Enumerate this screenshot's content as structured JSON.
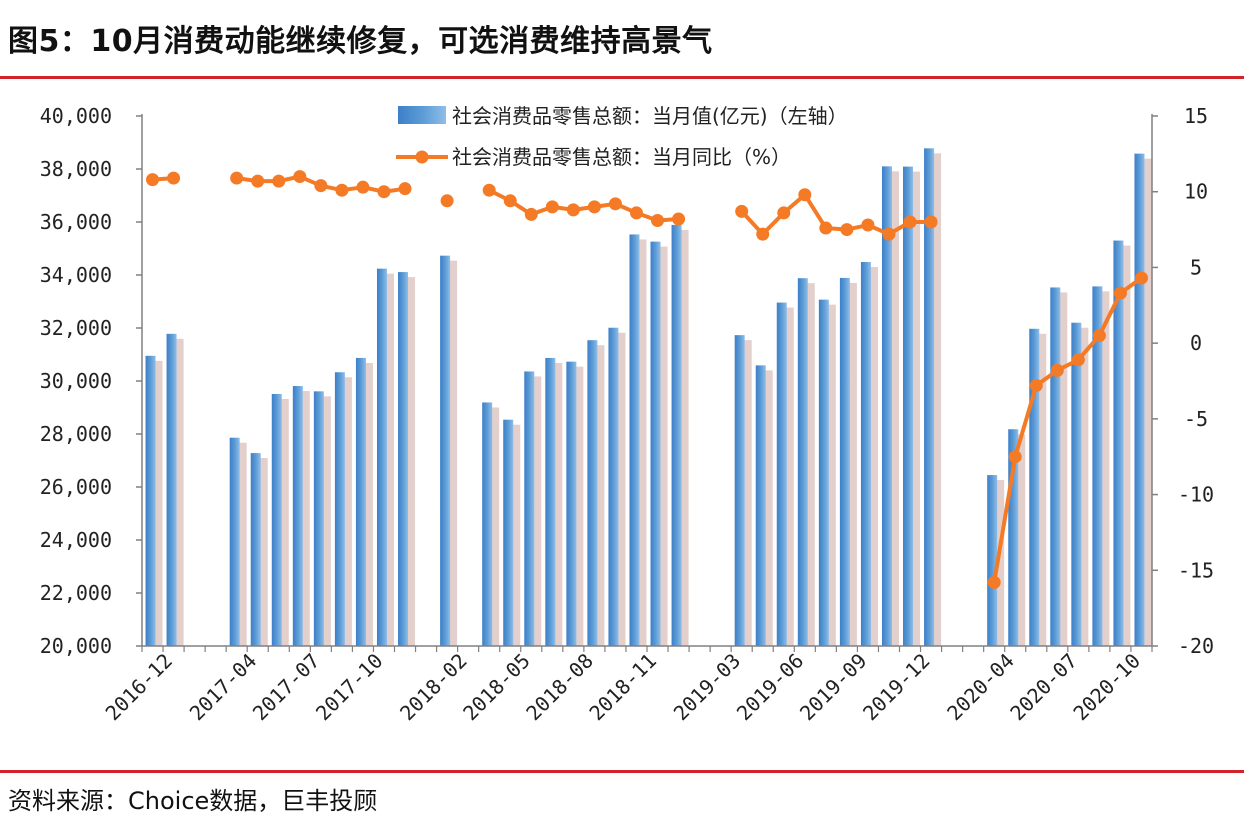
{
  "figure": {
    "title": "图5：10月消费动能继续修复，可选消费维持高景气",
    "source": "资料来源：Choice数据，巨丰投顾"
  },
  "chart_data": {
    "type": "bar+line",
    "categories": [
      "2016-11",
      "2016-12",
      "2017-01",
      "2017-02",
      "2017-03",
      "2017-04",
      "2017-05",
      "2017-06",
      "2017-07",
      "2017-08",
      "2017-09",
      "2017-10",
      "2017-11",
      "2017-12",
      "2018-01",
      "2018-02",
      "2018-03",
      "2018-04",
      "2018-05",
      "2018-06",
      "2018-07",
      "2018-08",
      "2018-09",
      "2018-10",
      "2018-11",
      "2018-12",
      "2019-01",
      "2019-02",
      "2019-03",
      "2019-04",
      "2019-05",
      "2019-06",
      "2019-07",
      "2019-08",
      "2019-09",
      "2019-10",
      "2019-11",
      "2019-12",
      "2020-01",
      "2020-02",
      "2020-03",
      "2020-04",
      "2020-05",
      "2020-06",
      "2020-07",
      "2020-08",
      "2020-09",
      "2020-10"
    ],
    "x_tick_labels": [
      "2016-12",
      "2017-04",
      "2017-07",
      "2017-10",
      "2018-02",
      "2018-05",
      "2018-08",
      "2018-11",
      "2019-03",
      "2019-06",
      "2019-09",
      "2019-12",
      "2020-04",
      "2020-07",
      "2020-10"
    ],
    "series": [
      {
        "name": "社会消费品零售总额：当月值(亿元)（左轴）",
        "type": "bar",
        "axis": "left",
        "color": "#5b9bd5",
        "values": [
          30950,
          31780,
          null,
          null,
          27860,
          27280,
          29510,
          29810,
          29610,
          30330,
          30870,
          34240,
          34110,
          null,
          34730,
          null,
          29190,
          28540,
          30360,
          30870,
          30730,
          31540,
          32010,
          35530,
          35260,
          35890,
          null,
          null,
          31730,
          30590,
          32960,
          33880,
          33070,
          33890,
          34490,
          38100,
          38090,
          38780,
          null,
          null,
          26450,
          28180,
          31970,
          33530,
          32200,
          33570,
          35300,
          38580
        ]
      },
      {
        "name": "社会消费品零售总额：当月同比（%）",
        "type": "line",
        "axis": "right",
        "color": "#f47a25",
        "values": [
          10.8,
          10.9,
          null,
          null,
          10.9,
          10.7,
          10.7,
          11.0,
          10.4,
          10.1,
          10.3,
          10.0,
          10.2,
          null,
          9.4,
          null,
          10.1,
          9.4,
          8.5,
          9.0,
          8.8,
          9.0,
          9.2,
          8.6,
          8.1,
          8.2,
          null,
          null,
          8.7,
          7.2,
          8.6,
          9.8,
          7.6,
          7.5,
          7.8,
          7.2,
          8.0,
          8.0,
          null,
          null,
          -15.8,
          -7.5,
          -2.8,
          -1.8,
          -1.1,
          0.5,
          3.3,
          4.3
        ]
      }
    ],
    "y_left": {
      "min": 20000,
      "max": 40000,
      "step": 2000,
      "tick_labels": [
        "20,000",
        "22,000",
        "24,000",
        "26,000",
        "28,000",
        "30,000",
        "32,000",
        "34,000",
        "36,000",
        "38,000",
        "40,000"
      ]
    },
    "y_right": {
      "min": -20,
      "max": 15,
      "step": 5,
      "tick_labels": [
        "-20",
        "-15",
        "-10",
        "-5",
        "0",
        "5",
        "10",
        "15"
      ]
    },
    "legend_position": "top-center",
    "grid": false
  }
}
